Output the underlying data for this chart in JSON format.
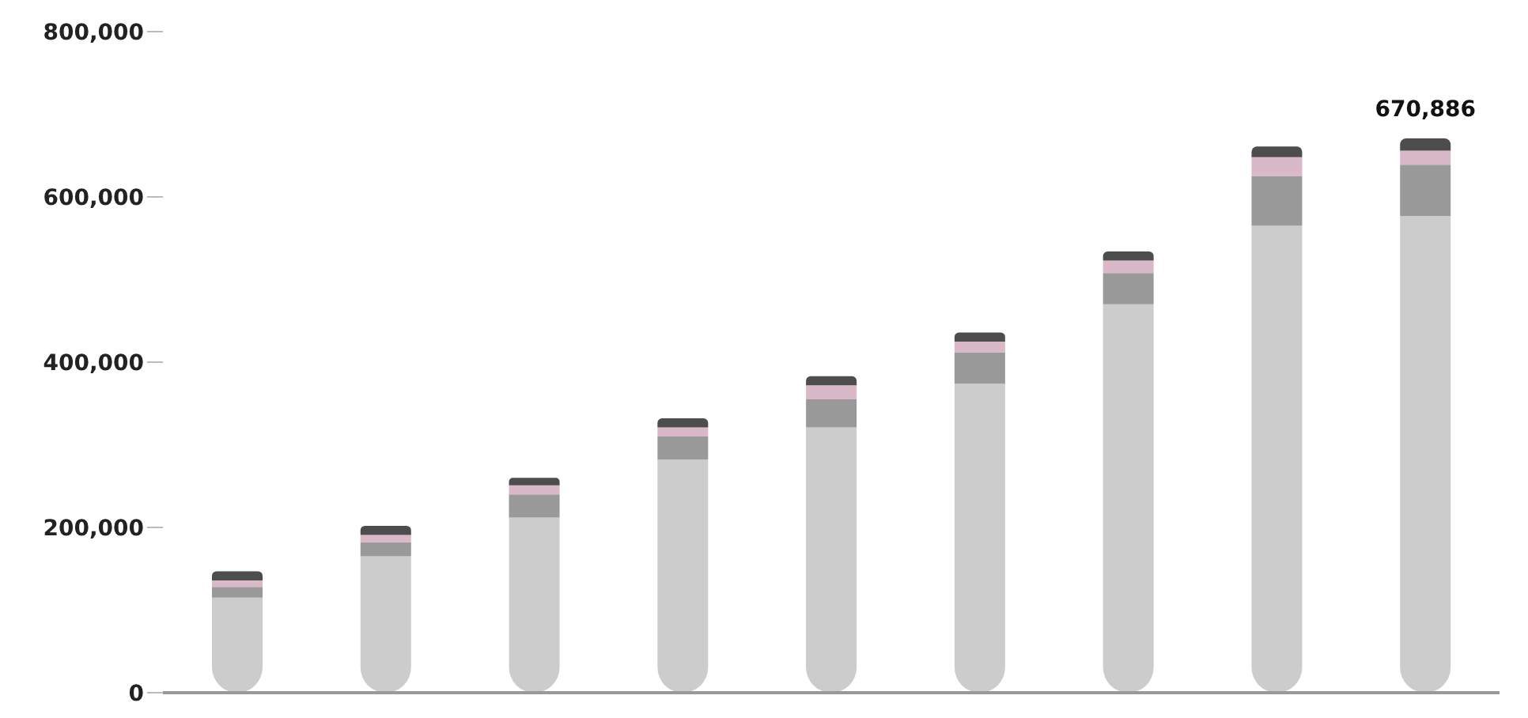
{
  "chart_data": {
    "type": "bar",
    "stacked": true,
    "categories": [
      null,
      null,
      null,
      null,
      null,
      null,
      null,
      null,
      null
    ],
    "series": [
      {
        "color": "#cccccc",
        "values": [
          115000,
          165000,
          212000,
          282000,
          321000,
          374000,
          470000,
          565000,
          576886
        ]
      },
      {
        "color": "#999999",
        "values": [
          13000,
          17000,
          28000,
          28000,
          34000,
          38000,
          38000,
          60000,
          62000
        ]
      },
      {
        "color": "#d9b8c8",
        "values": [
          8000,
          9000,
          11000,
          11000,
          17000,
          13000,
          15000,
          23000,
          17000
        ]
      },
      {
        "color": "#4d4d4d",
        "values": [
          11000,
          11000,
          9000,
          11000,
          11000,
          11000,
          11000,
          13000,
          15000
        ]
      }
    ],
    "totals": [
      null,
      null,
      null,
      null,
      null,
      null,
      null,
      null,
      "670,886"
    ],
    "ylim": [
      0,
      800000
    ],
    "yticks": [
      0,
      {
        "value": 200000,
        "label": "200,000"
      },
      {
        "value": 400000,
        "label": "400,000"
      },
      {
        "value": 600000,
        "label": "600,000"
      },
      {
        "value": 800000,
        "label": "800,000"
      }
    ],
    "grid": false,
    "legend": false
  }
}
